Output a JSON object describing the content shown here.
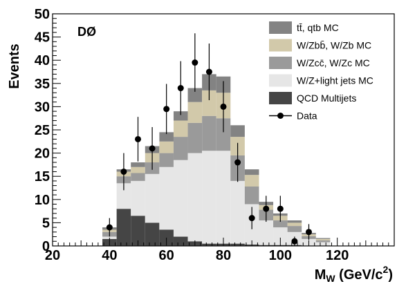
{
  "chart_data": {
    "type": "bar",
    "subtype": "stacked-histogram-with-data-points",
    "annotation": "DØ",
    "xlabel_main": "M",
    "xlabel_sub": "W",
    "xlabel_rest": " (GeV/c",
    "xlabel_sup": "2",
    "xlabel_close": ")",
    "ylabel": "Events",
    "xlim": [
      20,
      140
    ],
    "ylim": [
      0,
      50
    ],
    "x_ticks": [
      20,
      40,
      60,
      80,
      100,
      120
    ],
    "y_ticks": [
      0,
      5,
      10,
      15,
      20,
      25,
      30,
      35,
      40,
      45,
      50
    ],
    "grid": false,
    "legend_position": "top-right",
    "bin_edges": [
      37.5,
      42.5,
      47.5,
      52.5,
      57.5,
      62.5,
      67.5,
      72.5,
      77.5,
      82.5,
      87.5,
      92.5,
      97.5,
      102.5,
      107.5,
      112.5,
      117.5
    ],
    "series": [
      {
        "name": "QCD Multijets",
        "color": "#454545",
        "values": [
          1.5,
          8.0,
          6.5,
          5.0,
          3.5,
          2.0,
          1.0,
          0.5,
          0.5,
          0.5,
          0.3,
          0.2,
          0.2,
          0.2,
          0.1,
          0.0
        ]
      },
      {
        "name": "W/Z+light jets MC",
        "color": "#e6e6e6",
        "values": [
          0.5,
          5.5,
          7.5,
          10.5,
          13.5,
          16.5,
          19.0,
          20.0,
          20.0,
          13.5,
          8.7,
          5.3,
          3.8,
          2.8,
          1.4,
          0.8
        ]
      },
      {
        "name": "W/Zcc̄, W/Zc MC",
        "color": "#9a9a9a",
        "values": [
          1.0,
          1.5,
          1.7,
          2.5,
          3.0,
          5.0,
          6.5,
          7.5,
          7.0,
          5.5,
          3.8,
          2.3,
          1.5,
          1.3,
          0.6,
          0.4
        ]
      },
      {
        "name": "W/Zbb̄, W/Zb MC",
        "color": "#d2c9aa",
        "values": [
          0.5,
          1.0,
          1.3,
          2.0,
          2.5,
          3.5,
          4.5,
          5.5,
          5.5,
          4.0,
          2.5,
          1.0,
          1.0,
          0.7,
          0.4,
          0.3
        ]
      },
      {
        "name": "tt̄, qtb MC",
        "color": "#838383",
        "values": [
          0.5,
          0.5,
          1.0,
          1.5,
          2.0,
          2.0,
          3.0,
          3.5,
          3.5,
          2.5,
          1.2,
          0.7,
          0.5,
          0.5,
          0.3,
          0.2
        ]
      }
    ],
    "data_points": {
      "name": "Data",
      "x": [
        40,
        45,
        50,
        55,
        60,
        65,
        70,
        75,
        80,
        85,
        90,
        95,
        100,
        105,
        110,
        115
      ],
      "y": [
        4,
        16,
        23,
        21,
        29.5,
        34,
        39.5,
        37.5,
        30,
        18,
        6,
        8,
        8,
        1,
        3,
        0
      ],
      "err": [
        2.0,
        4.0,
        4.8,
        4.6,
        5.4,
        5.8,
        6.3,
        6.1,
        5.5,
        4.2,
        2.4,
        2.8,
        2.8,
        1.0,
        1.7,
        0
      ]
    },
    "legend_order": [
      "tt̄, qtb MC",
      "W/Zbb̄, W/Zb MC",
      "W/Zcc̄, W/Zc MC",
      "W/Z+light jets MC",
      "QCD Multijets",
      "Data"
    ]
  }
}
